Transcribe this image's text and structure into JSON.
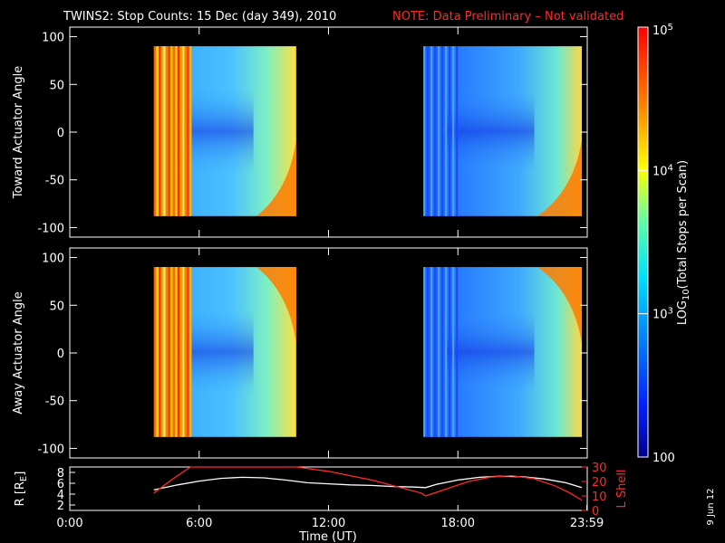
{
  "header": {
    "title": "TWINS2: Stop Counts: 15 Dec (day 349), 2010",
    "note": "NOTE: Data Preliminary – Not validated",
    "note_color": "#ff2a2a"
  },
  "colorbar": {
    "label": "LOG10(Total Stops per Scan)",
    "label_main": "LOG",
    "label_sub": "10",
    "label_rest": "(Total Stops per Scan)",
    "scale": "log",
    "range": [
      100,
      100000
    ],
    "ticks": [
      {
        "value": 100,
        "text": "100"
      },
      {
        "value": 1000,
        "base": "10",
        "exp": "3"
      },
      {
        "value": 10000,
        "base": "10",
        "exp": "4"
      },
      {
        "value": 100000,
        "base": "10",
        "exp": "5"
      }
    ]
  },
  "footer": {
    "date_stamp": "9 Jun 12"
  },
  "chart_data": [
    {
      "type": "heatmap",
      "ylabel": "Toward Actuator Angle",
      "ylim": [
        -110,
        110
      ],
      "yticks": [
        100,
        50,
        0,
        -50,
        -100
      ],
      "xlim": [
        0,
        24
      ],
      "x_unit": "hours UT",
      "data_blocks": [
        {
          "start_hour": 3.9,
          "end_hour": 10.5,
          "angle_range": [
            -88,
            90
          ]
        },
        {
          "start_hour": 16.4,
          "end_hour": 23.75,
          "angle_range": [
            -88,
            90
          ]
        }
      ],
      "color_scale": "log",
      "value_range": [
        100,
        100000
      ]
    },
    {
      "type": "heatmap",
      "ylabel": "Away Actuator Angle",
      "ylim": [
        -110,
        110
      ],
      "yticks": [
        100,
        50,
        0,
        -50,
        -100
      ],
      "xlim": [
        0,
        24
      ],
      "x_unit": "hours UT",
      "data_blocks": [
        {
          "start_hour": 3.9,
          "end_hour": 10.5,
          "angle_range": [
            -88,
            90
          ]
        },
        {
          "start_hour": 16.4,
          "end_hour": 23.75,
          "angle_range": [
            -88,
            90
          ]
        }
      ],
      "color_scale": "log",
      "value_range": [
        100,
        100000
      ]
    },
    {
      "type": "line",
      "ylabel_left": "R [RE]",
      "ylabel_left_main": "R [R",
      "ylabel_left_sub": "E",
      "ylabel_left_end": "]",
      "ylabel_right": "L Shell",
      "yticks_left": [
        8,
        6,
        4,
        2
      ],
      "ylim_left": [
        1,
        9
      ],
      "yticks_right": [
        30,
        20,
        10,
        0
      ],
      "ylim_right": [
        0,
        30
      ],
      "xlim": [
        0,
        24
      ],
      "xlabel": "Time (UT)",
      "xticks": [
        {
          "value": 0,
          "text": "0:00"
        },
        {
          "value": 6,
          "text": "6:00"
        },
        {
          "value": 12,
          "text": "12:00"
        },
        {
          "value": 18,
          "text": "18:00"
        },
        {
          "value": 23.983,
          "text": "23:59"
        }
      ],
      "series": [
        {
          "axis": "left",
          "color": "#ffffff",
          "x": [
            3.9,
            5.0,
            6.0,
            7.0,
            8.0,
            9.0,
            10.0,
            11.0,
            12.0,
            13.0,
            14.0,
            15.0,
            16.0,
            16.5,
            17.0,
            18.0,
            19.0,
            20.0,
            21.0,
            22.0,
            23.0,
            23.75
          ],
          "y": [
            4.8,
            5.7,
            6.4,
            6.9,
            7.1,
            7.0,
            6.6,
            6.1,
            5.9,
            5.7,
            5.6,
            5.4,
            5.3,
            5.2,
            5.8,
            6.6,
            7.1,
            7.3,
            7.2,
            6.8,
            6.1,
            5.2
          ]
        },
        {
          "axis": "right",
          "color": "#ff2a2a",
          "x": [
            3.9,
            4.8,
            5.6,
            5.7,
            10.5,
            12.0,
            14.0,
            16.3,
            16.5,
            17.5,
            18.5,
            19.5,
            20.5,
            21.5,
            22.5,
            23.2,
            23.75
          ],
          "y": [
            12,
            22,
            33,
            33,
            30,
            27,
            21,
            12,
            10,
            15,
            20,
            23,
            24,
            22,
            17,
            12,
            7
          ]
        }
      ]
    }
  ]
}
